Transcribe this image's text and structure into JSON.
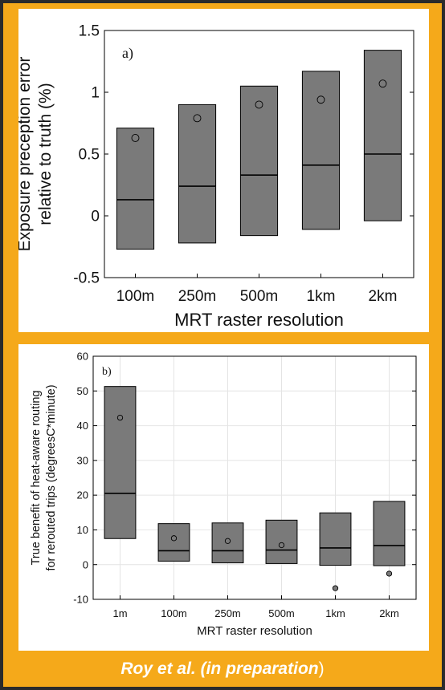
{
  "footer": {
    "citation": "Roy et al. (in preparation",
    "closing": ")"
  },
  "chart_data": [
    {
      "type": "box",
      "panel_label": "a)",
      "xlabel": "MRT raster resolution",
      "ylabel": [
        "Exposure preception error",
        "relative to truth (%)"
      ],
      "ylim": [
        -0.5,
        1.5
      ],
      "yticks": [
        -0.5,
        0,
        0.5,
        1,
        1.5
      ],
      "ytick_labels": [
        "-0.5",
        "0",
        "0.5",
        "1",
        "1.5"
      ],
      "grid": false,
      "categories": [
        "100m",
        "250m",
        "500m",
        "1km",
        "2km"
      ],
      "q1": [
        -0.27,
        -0.22,
        -0.16,
        -0.11,
        -0.04
      ],
      "median": [
        0.13,
        0.24,
        0.33,
        0.41,
        0.5
      ],
      "q3": [
        0.71,
        0.9,
        1.05,
        1.17,
        1.34
      ],
      "mean": [
        0.63,
        0.79,
        0.9,
        0.94,
        1.07
      ],
      "colors": {
        "box": "#7a7a7a",
        "edge": "#000000"
      }
    },
    {
      "type": "box",
      "panel_label": "b)",
      "xlabel": "MRT raster resolution",
      "ylabel": [
        "True benefit of heat-aware routing",
        "for rerouted trips (degreesC*minute)"
      ],
      "ylim": [
        -10,
        60
      ],
      "yticks": [
        -10,
        0,
        10,
        20,
        30,
        40,
        50,
        60
      ],
      "ytick_labels": [
        "-10",
        "0",
        "10",
        "20",
        "30",
        "40",
        "50",
        "60"
      ],
      "grid": true,
      "categories": [
        "1m",
        "100m",
        "250m",
        "500m",
        "1km",
        "2km"
      ],
      "q1": [
        7.5,
        1.0,
        0.5,
        0.3,
        -0.2,
        -0.3
      ],
      "median": [
        20.5,
        4.0,
        4.0,
        4.2,
        4.8,
        5.5
      ],
      "q3": [
        51.3,
        11.8,
        12.0,
        12.8,
        14.9,
        18.2
      ],
      "mean": [
        42.3,
        7.6,
        6.8,
        5.6,
        -6.8,
        -2.6
      ],
      "colors": {
        "box": "#7a7a7a",
        "edge": "#000000"
      }
    }
  ]
}
